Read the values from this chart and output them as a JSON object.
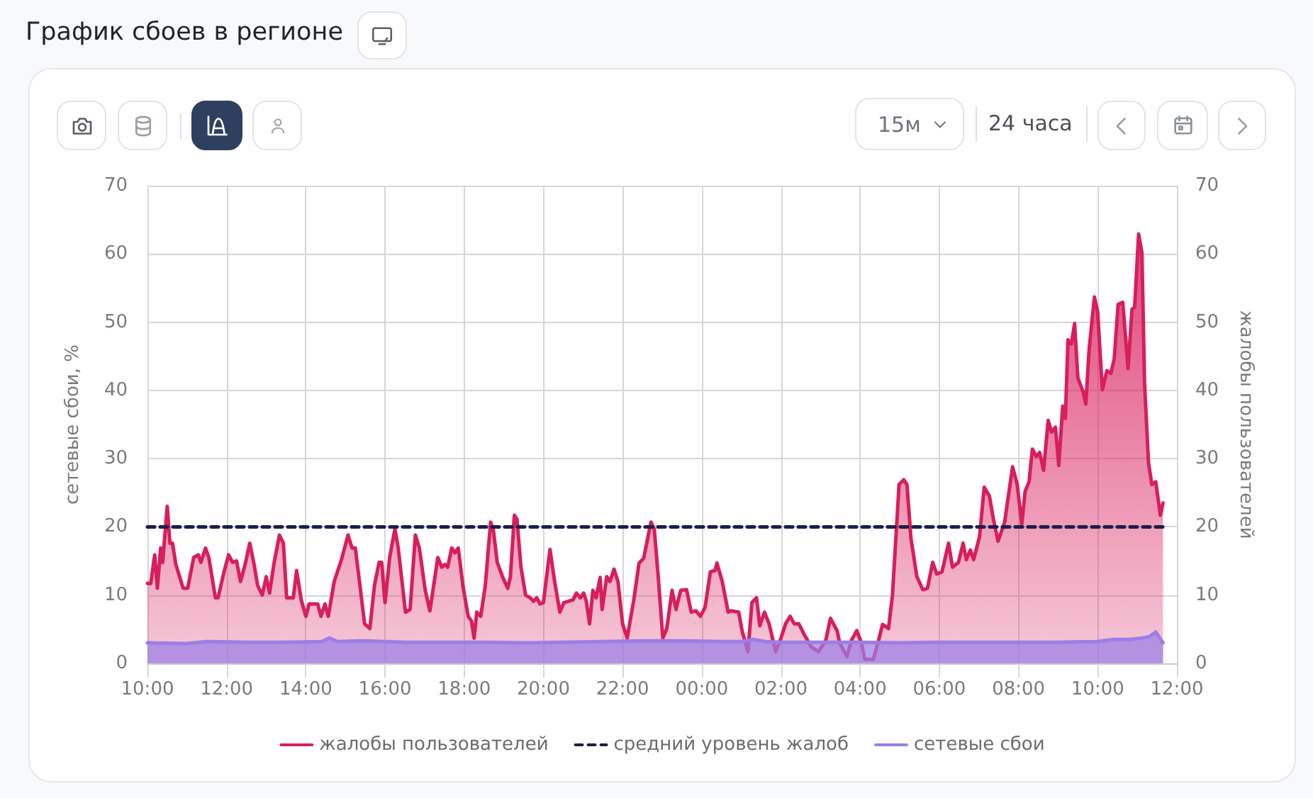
{
  "chart_data": {
    "type": "area",
    "title": "График сбоев в регионе",
    "ylabel": "сетевые сбои, %",
    "y2label": "жалобы пользователей",
    "annotations": [
      "15м",
      "24 часа"
    ],
    "xlim": [
      "--01-01T10:00",
      "--01-02T12:00"
    ],
    "xticks": [
      {
        "value": "--01-01T10:00",
        "label": "10:00"
      },
      {
        "value": "--01-01T12:00",
        "label": "12:00"
      },
      {
        "value": "--01-01T14:00",
        "label": "14:00"
      },
      {
        "value": "--01-01T16:00",
        "label": "16:00"
      },
      {
        "value": "--01-01T18:00",
        "label": "18:00"
      },
      {
        "value": "--01-01T20:00",
        "label": "20:00"
      },
      {
        "value": "--01-01T22:00",
        "label": "22:00"
      },
      {
        "value": "--01-02T00:00",
        "label": "00:00"
      },
      {
        "value": "--01-02T02:00",
        "label": "02:00"
      },
      {
        "value": "--01-02T04:00",
        "label": "04:00"
      },
      {
        "value": "--01-02T06:00",
        "label": "06:00"
      },
      {
        "value": "--01-02T08:00",
        "label": "08:00"
      },
      {
        "value": "--01-02T10:00",
        "label": "10:00"
      },
      {
        "value": "--01-02T12:00",
        "label": "12:00"
      }
    ],
    "ylim": [
      0,
      70
    ],
    "yticks": [
      0,
      10,
      20,
      30,
      40,
      50,
      60,
      70
    ],
    "y2lim": [
      0,
      70
    ],
    "y2ticks": [
      0,
      10,
      20,
      30,
      40,
      50,
      60,
      70
    ],
    "grid": true,
    "legend": "bottom",
    "series": [
      {
        "name": "жалобы пользователей",
        "color": "#d81e5b",
        "x": [
          "--01-01T10:00",
          "--01-01T10:05",
          "--01-01T10:11",
          "--01-01T10:15",
          "--01-01T10:20",
          "--01-01T10:23",
          "--01-01T10:30",
          "--01-01T10:34",
          "--01-01T10:38",
          "--01-01T10:43",
          "--01-01T10:54",
          "--01-01T11:01",
          "--01-01T11:10",
          "--01-01T11:17",
          "--01-01T11:21",
          "--01-01T11:28",
          "--01-01T11:33",
          "--01-01T11:43",
          "--01-01T11:47",
          "--01-01T11:56",
          "--01-01T12:03",
          "--01-01T12:09",
          "--01-01T12:15",
          "--01-01T12:21",
          "--01-01T12:28",
          "--01-01T12:35",
          "--01-01T12:41",
          "--01-01T12:47",
          "--01-01T12:54",
          "--01-01T13:00",
          "--01-01T13:05",
          "--01-01T13:12",
          "--01-01T13:20",
          "--01-01T13:26",
          "--01-01T13:31",
          "--01-01T13:41",
          "--01-01T13:46",
          "--01-01T13:53",
          "--01-01T14:00",
          "--01-01T14:05",
          "--01-01T14:18",
          "--01-01T14:23",
          "--01-01T14:29",
          "--01-01T14:34",
          "--01-01T14:43",
          "--01-01T14:54",
          "--01-01T15:04",
          "--01-01T15:10",
          "--01-01T15:15",
          "--01-01T15:22",
          "--01-01T15:29",
          "--01-01T15:37",
          "--01-01T15:44",
          "--01-01T15:51",
          "--01-01T15:55",
          "--01-01T16:00",
          "--01-01T16:07",
          "--01-01T16:15",
          "--01-01T16:20",
          "--01-01T16:31",
          "--01-01T16:38",
          "--01-01T16:46",
          "--01-01T16:52",
          "--01-01T17:01",
          "--01-01T17:08",
          "--01-01T17:20",
          "--01-01T17:26",
          "--01-01T17:31",
          "--01-01T17:35",
          "--01-01T17:41",
          "--01-01T17:46",
          "--01-01T17:51",
          "--01-01T17:58",
          "--01-01T18:06",
          "--01-01T18:11",
          "--01-01T18:15",
          "--01-01T18:19",
          "--01-01T18:25",
          "--01-01T18:32",
          "--01-01T18:40",
          "--01-01T18:44",
          "--01-01T18:50",
          "--01-01T18:58",
          "--01-01T19:06",
          "--01-01T19:10",
          "--01-01T19:16",
          "--01-01T19:20",
          "--01-01T19:26",
          "--01-01T19:33",
          "--01-01T19:40",
          "--01-01T19:45",
          "--01-01T19:50",
          "--01-01T19:55",
          "--01-01T20:00",
          "--01-01T20:10",
          "--01-01T20:17",
          "--01-01T20:25",
          "--01-01T20:31",
          "--01-01T20:45",
          "--01-01T20:50",
          "--01-01T20:56",
          "--01-01T21:01",
          "--01-01T21:05",
          "--01-01T21:10",
          "--01-01T21:15",
          "--01-01T21:20",
          "--01-01T21:26",
          "--01-01T21:29",
          "--01-01T21:36",
          "--01-01T21:41",
          "--01-01T21:47",
          "--01-01T21:53",
          "--01-01T22:00",
          "--01-01T22:07",
          "--01-01T22:17",
          "--01-01T22:25",
          "--01-01T22:32",
          "--01-01T22:43",
          "--01-01T22:48",
          "--01-01T22:54",
          "--01-01T23:01",
          "--01-01T23:07",
          "--01-01T23:15",
          "--01-01T23:21",
          "--01-01T23:28",
          "--01-01T23:37",
          "--01-01T23:44",
          "--01-01T23:51",
          "--01-01T23:58",
          "--01-02T00:05",
          "--01-02T00:13",
          "--01-02T00:20",
          "--01-02T00:23",
          "--01-02T00:31",
          "--01-02T00:40",
          "--01-02T00:45",
          "--01-02T00:56",
          "--01-02T01:01",
          "--01-02T01:10",
          "--01-02T01:16",
          "--01-02T01:23",
          "--01-02T01:28",
          "--01-02T01:35",
          "--01-02T01:42",
          "--01-02T01:52",
          "--01-02T02:00",
          "--01-02T02:07",
          "--01-02T02:14",
          "--01-02T02:20",
          "--01-02T02:27",
          "--01-02T02:36",
          "--01-02T02:46",
          "--01-02T02:57",
          "--01-02T03:08",
          "--01-02T03:15",
          "--01-02T03:25",
          "--01-02T03:29",
          "--01-02T03:40",
          "--01-02T03:47",
          "--01-02T03:55",
          "--01-02T04:02",
          "--01-02T04:07",
          "--01-02T04:20",
          "--01-02T04:27",
          "--01-02T04:34",
          "--01-02T04:43",
          "--01-02T04:49",
          "--01-02T04:59",
          "--01-02T05:06",
          "--01-02T05:11",
          "--01-02T05:17",
          "--01-02T05:26",
          "--01-02T05:35",
          "--01-02T05:42",
          "--01-02T05:50",
          "--01-02T05:56",
          "--01-02T06:04",
          "--01-02T06:14",
          "--01-02T06:20",
          "--01-02T06:29",
          "--01-02T06:36",
          "--01-02T06:41",
          "--01-02T06:47",
          "--01-02T06:52",
          "--01-02T07:01",
          "--01-02T07:08",
          "--01-02T07:16",
          "--01-02T07:22",
          "--01-02T07:29",
          "--01-02T07:39",
          "--01-02T07:51",
          "--01-02T07:58",
          "--01-02T08:05",
          "--01-02T08:10",
          "--01-02T08:16",
          "--01-02T08:21",
          "--01-02T08:27",
          "--01-02T08:32",
          "--01-02T08:38",
          "--01-02T08:45",
          "--01-02T08:50",
          "--01-02T08:56",
          "--01-02T09:01",
          "--01-02T09:07",
          "--01-02T09:11",
          "--01-02T09:15",
          "--01-02T09:20",
          "--01-02T09:25",
          "--01-02T09:30",
          "--01-02T09:38",
          "--01-02T09:42",
          "--01-02T09:47",
          "--01-02T09:55",
          "--01-02T10:00",
          "--01-02T10:07",
          "--01-02T10:14",
          "--01-02T10:20",
          "--01-02T10:25",
          "--01-02T10:31",
          "--01-02T10:38",
          "--01-02T10:46",
          "--01-02T10:52",
          "--01-02T10:56",
          "--01-02T11:02",
          "--01-02T11:07",
          "--01-02T11:11",
          "--01-02T11:17",
          "--01-02T11:22",
          "--01-02T11:28",
          "--01-02T11:35",
          "--01-02T11:39"
        ],
        "values": [
          11.7,
          11.7,
          15.9,
          11.0,
          16.9,
          14.8,
          23.0,
          17.6,
          17.6,
          14.5,
          11.0,
          11.0,
          15.5,
          15.9,
          14.8,
          16.9,
          15.5,
          9.6,
          9.6,
          13.4,
          15.9,
          14.8,
          15.0,
          12.0,
          14.5,
          17.6,
          14.8,
          11.4,
          10.0,
          12.7,
          10.3,
          14.8,
          18.8,
          17.6,
          9.6,
          9.6,
          13.6,
          9.3,
          6.9,
          8.7,
          8.7,
          6.9,
          8.7,
          6.9,
          12.0,
          15.2,
          18.8,
          16.9,
          16.9,
          11.4,
          5.8,
          5.1,
          11.4,
          14.8,
          14.8,
          8.9,
          15.5,
          19.7,
          16.9,
          7.5,
          7.9,
          18.8,
          16.9,
          10.7,
          7.7,
          15.5,
          14.1,
          14.5,
          14.1,
          16.9,
          16.2,
          16.9,
          11.4,
          6.9,
          6.2,
          3.7,
          7.5,
          6.9,
          11.4,
          20.7,
          19.7,
          14.8,
          12.7,
          11.0,
          12.7,
          21.7,
          21.1,
          14.1,
          10.0,
          9.6,
          9.1,
          9.6,
          8.7,
          8.9,
          16.7,
          12.0,
          7.5,
          8.9,
          9.3,
          10.3,
          9.6,
          10.3,
          9.1,
          5.8,
          10.7,
          9.6,
          12.6,
          7.9,
          12.7,
          12.0,
          13.8,
          12.0,
          5.8,
          3.7,
          9.3,
          14.7,
          15.4,
          20.7,
          19.7,
          12.7,
          3.7,
          5.1,
          10.7,
          7.9,
          10.7,
          10.8,
          7.5,
          7.7,
          6.9,
          8.2,
          13.4,
          13.6,
          14.7,
          12.0,
          7.5,
          7.7,
          7.5,
          4.8,
          1.7,
          8.9,
          9.6,
          5.5,
          7.5,
          5.8,
          1.7,
          3.7,
          5.8,
          6.9,
          5.8,
          5.8,
          4.1,
          2.4,
          1.7,
          3.4,
          6.6,
          4.8,
          3.0,
          1.0,
          3.4,
          4.8,
          3.0,
          0.6,
          0.6,
          3.0,
          5.7,
          5.1,
          10.0,
          26.2,
          26.9,
          26.2,
          18.3,
          12.7,
          10.8,
          11.0,
          14.8,
          13.1,
          13.4,
          17.6,
          14.1,
          14.8,
          17.6,
          15.2,
          16.6,
          15.2,
          18.6,
          25.8,
          24.5,
          21.1,
          17.9,
          20.7,
          28.8,
          26.2,
          20.4,
          25.2,
          26.6,
          31.4,
          30.3,
          30.9,
          28.3,
          35.6,
          33.9,
          34.6,
          29.0,
          37.7,
          35.9,
          47.4,
          46.8,
          49.8,
          41.8,
          39.8,
          38.0,
          46.0,
          53.7,
          51.5,
          40.1,
          42.9,
          42.5,
          44.6,
          52.6,
          52.9,
          43.2,
          51.9,
          52.2,
          62.9,
          60.2,
          41.1,
          29.4,
          26.2,
          26.6,
          21.7,
          23.5
        ]
      },
      {
        "name": "средний уровень жалоб",
        "type": "line",
        "color": "#1b1f4b",
        "line_style": "dashed",
        "x": [
          "--01-01T10:00",
          "--01-02T11:39"
        ],
        "values": [
          20,
          20
        ]
      },
      {
        "name": "сетевые сбои",
        "color": "#9b7ee6",
        "x": [
          "--01-01T10:00",
          "--01-01T11:00",
          "--01-01T11:30",
          "--01-01T12:30",
          "--01-01T13:30",
          "--01-01T14:24",
          "--01-01T14:36",
          "--01-01T14:48",
          "--01-01T15:30",
          "--01-01T16:30",
          "--01-01T17:30",
          "--01-01T18:30",
          "--01-01T19:30",
          "--01-01T20:30",
          "--01-01T21:30",
          "--01-01T22:30",
          "--01-01T23:30",
          "--01-02T00:30",
          "--01-02T01:00",
          "--01-02T01:18",
          "--01-02T01:36",
          "--01-02T02:00",
          "--01-02T03:00",
          "--01-02T04:00",
          "--01-02T05:00",
          "--01-02T06:00",
          "--01-02T07:00",
          "--01-02T08:00",
          "--01-02T09:00",
          "--01-02T10:00",
          "--01-02T10:24",
          "--01-02T10:48",
          "--01-02T11:06",
          "--01-02T11:18",
          "--01-02T11:28",
          "--01-02T11:39"
        ],
        "values": [
          3.0,
          2.9,
          3.2,
          3.1,
          3.1,
          3.2,
          3.7,
          3.2,
          3.3,
          3.1,
          3.1,
          3.1,
          3.0,
          3.1,
          3.2,
          3.3,
          3.3,
          3.2,
          3.2,
          3.5,
          3.2,
          3.1,
          3.1,
          3.1,
          3.0,
          3.1,
          3.1,
          3.1,
          3.1,
          3.2,
          3.5,
          3.5,
          3.7,
          3.9,
          4.6,
          3.0
        ]
      }
    ]
  }
}
